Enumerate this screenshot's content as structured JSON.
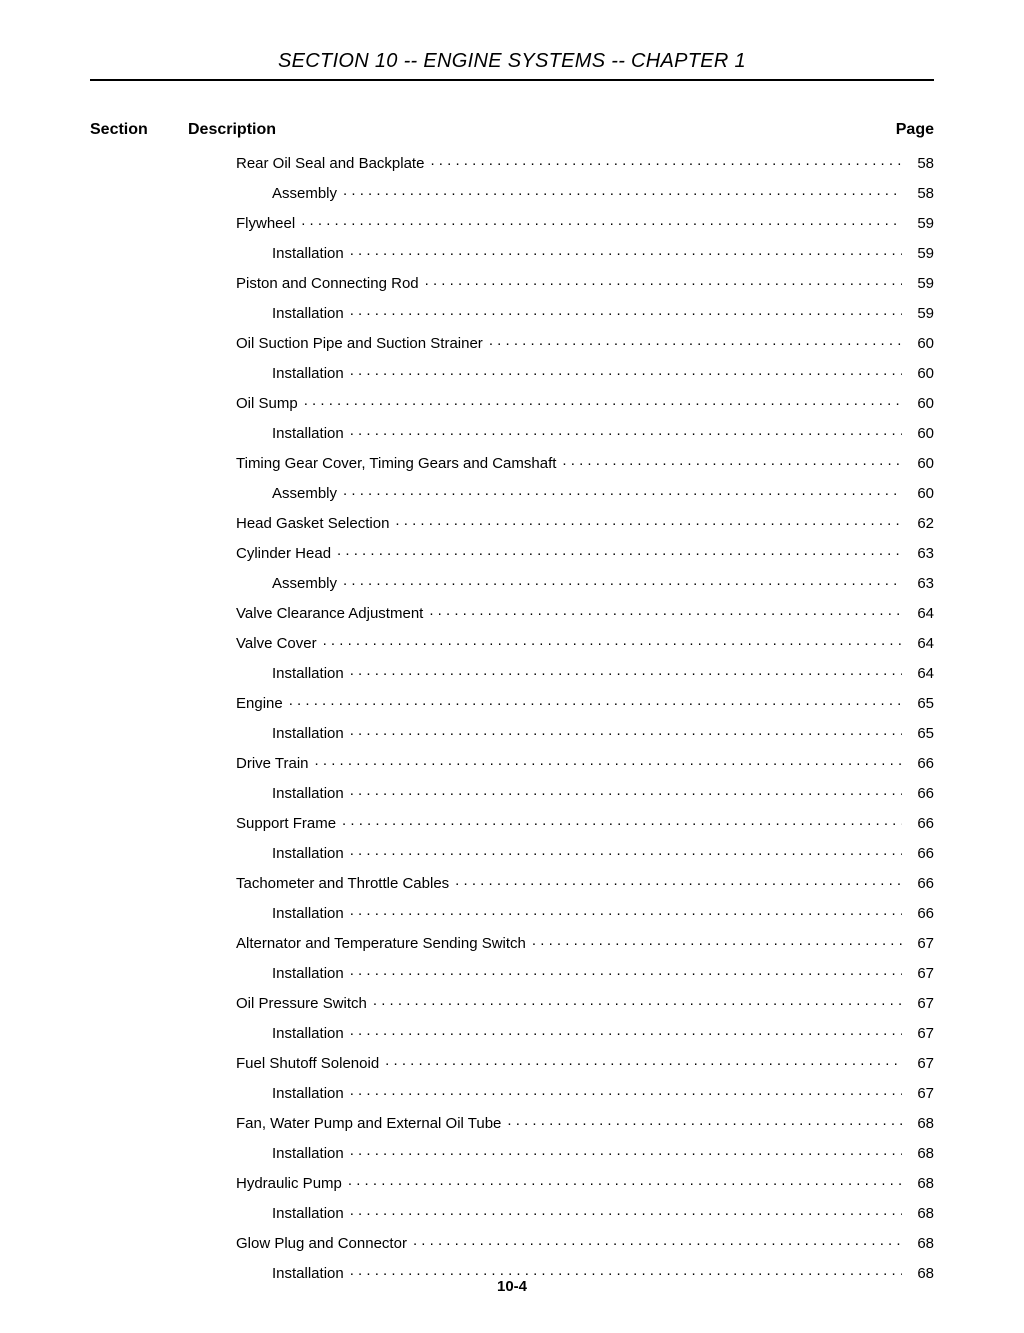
{
  "header": {
    "title": "SECTION 10 -- ENGINE SYSTEMS -- CHAPTER 1"
  },
  "columns": {
    "section_label": "Section",
    "description_label": "Description",
    "page_label": "Page"
  },
  "toc": [
    {
      "title": "Rear Oil Seal and Backplate",
      "page": "58",
      "indent": 1
    },
    {
      "title": "Assembly",
      "page": "58",
      "indent": 2
    },
    {
      "title": "Flywheel",
      "page": "59",
      "indent": 1
    },
    {
      "title": "Installation",
      "page": "59",
      "indent": 2
    },
    {
      "title": "Piston and Connecting Rod",
      "page": "59",
      "indent": 1
    },
    {
      "title": "Installation",
      "page": "59",
      "indent": 2
    },
    {
      "title": "Oil Suction Pipe and Suction Strainer",
      "page": "60",
      "indent": 1
    },
    {
      "title": "Installation",
      "page": "60",
      "indent": 2
    },
    {
      "title": "Oil Sump",
      "page": "60",
      "indent": 1
    },
    {
      "title": "Installation",
      "page": "60",
      "indent": 2
    },
    {
      "title": "Timing Gear Cover, Timing Gears and Camshaft",
      "page": "60",
      "indent": 1
    },
    {
      "title": "Assembly",
      "page": "60",
      "indent": 2
    },
    {
      "title": "Head Gasket Selection",
      "page": "62",
      "indent": 1
    },
    {
      "title": "Cylinder Head",
      "page": "63",
      "indent": 1
    },
    {
      "title": "Assembly",
      "page": "63",
      "indent": 2
    },
    {
      "title": "Valve Clearance Adjustment",
      "page": "64",
      "indent": 1
    },
    {
      "title": "Valve Cover",
      "page": "64",
      "indent": 1
    },
    {
      "title": "Installation",
      "page": "64",
      "indent": 2
    },
    {
      "title": "Engine",
      "page": "65",
      "indent": 1
    },
    {
      "title": "Installation",
      "page": "65",
      "indent": 2
    },
    {
      "title": "Drive Train",
      "page": "66",
      "indent": 1
    },
    {
      "title": "Installation",
      "page": "66",
      "indent": 2
    },
    {
      "title": "Support Frame",
      "page": "66",
      "indent": 1
    },
    {
      "title": "Installation",
      "page": "66",
      "indent": 2
    },
    {
      "title": "Tachometer and Throttle Cables",
      "page": "66",
      "indent": 1
    },
    {
      "title": "Installation",
      "page": "66",
      "indent": 2
    },
    {
      "title": "Alternator and Temperature Sending Switch",
      "page": "67",
      "indent": 1
    },
    {
      "title": "Installation",
      "page": "67",
      "indent": 2
    },
    {
      "title": "Oil Pressure Switch",
      "page": "67",
      "indent": 1
    },
    {
      "title": "Installation",
      "page": "67",
      "indent": 2
    },
    {
      "title": "Fuel Shutoff Solenoid",
      "page": "67",
      "indent": 1
    },
    {
      "title": "Installation",
      "page": "67",
      "indent": 2
    },
    {
      "title": "Fan, Water Pump and External Oil Tube",
      "page": "68",
      "indent": 1
    },
    {
      "title": "Installation",
      "page": "68",
      "indent": 2
    },
    {
      "title": "Hydraulic Pump",
      "page": "68",
      "indent": 1
    },
    {
      "title": "Installation",
      "page": "68",
      "indent": 2
    },
    {
      "title": "Glow Plug and Connector",
      "page": "68",
      "indent": 1
    },
    {
      "title": "Installation",
      "page": "68",
      "indent": 2
    }
  ],
  "footer": {
    "page_number": "10-4"
  }
}
